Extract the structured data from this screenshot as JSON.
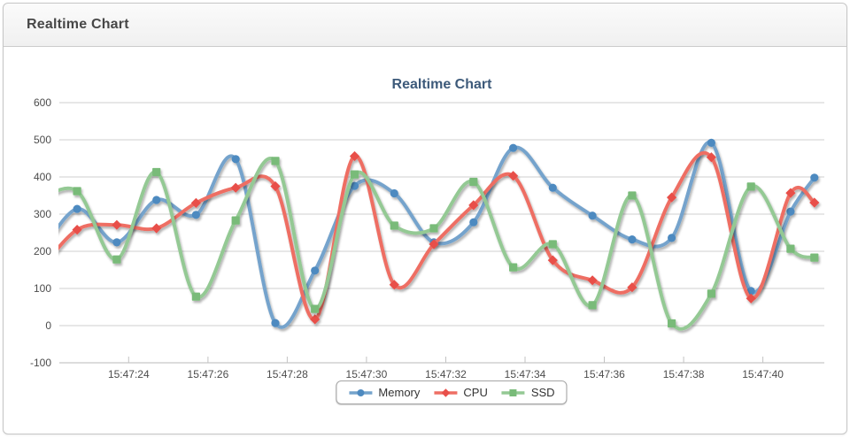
{
  "header": {
    "title": "Realtime Chart"
  },
  "chart_data": {
    "type": "line",
    "title": "Realtime Chart",
    "subtitle": "",
    "xlabel": "",
    "ylabel": "",
    "grid": "horizontal",
    "legend_position": "bottom",
    "x_axis": {
      "min": 22.25,
      "max": 41.55,
      "unit": "seconds after 15:47:00",
      "ticks": [
        {
          "t": 24,
          "label": "15:47:24"
        },
        {
          "t": 26,
          "label": "15:47:26"
        },
        {
          "t": 28,
          "label": "15:47:28"
        },
        {
          "t": 30,
          "label": "15:47:30"
        },
        {
          "t": 32,
          "label": "15:47:32"
        },
        {
          "t": 34,
          "label": "15:47:34"
        },
        {
          "t": 36,
          "label": "15:47:36"
        },
        {
          "t": 38,
          "label": "15:47:38"
        },
        {
          "t": 40,
          "label": "15:47:40"
        }
      ]
    },
    "y_axis": {
      "min": -100,
      "max": 600,
      "ticks": [
        600,
        500,
        400,
        300,
        200,
        100,
        0,
        -100
      ]
    },
    "x_seconds": [
      21.7,
      22.7,
      23.7,
      24.7,
      25.7,
      26.7,
      27.7,
      28.7,
      29.7,
      30.7,
      31.7,
      32.7,
      33.7,
      34.7,
      35.7,
      36.7,
      37.7,
      38.7,
      39.7,
      40.7,
      41.3
    ],
    "series": [
      {
        "name": "Memory",
        "marker": "circle",
        "line_color": "#74a3cc",
        "marker_color": "#4e8ac0",
        "values": [
          180,
          314,
          224,
          338,
          298,
          448,
          7,
          148,
          376,
          356,
          224,
          278,
          478,
          371,
          296,
          232,
          236,
          492,
          93,
          307,
          398
        ]
      },
      {
        "name": "CPU",
        "marker": "diamond",
        "line_color": "#ee6e64",
        "marker_color": "#e8504a",
        "values": [
          140,
          258,
          271,
          262,
          330,
          371,
          375,
          17,
          456,
          110,
          219,
          324,
          403,
          176,
          122,
          103,
          345,
          453,
          73,
          357,
          331
        ]
      },
      {
        "name": "SSD",
        "marker": "square",
        "line_color": "#94c994",
        "marker_color": "#79bb79",
        "values": [
          335,
          362,
          178,
          413,
          78,
          283,
          443,
          45,
          407,
          269,
          262,
          387,
          157,
          219,
          55,
          350,
          6,
          86,
          374,
          207,
          183
        ]
      }
    ],
    "colors": {
      "gridline": "#cfcfcf",
      "axis_line": "#b9b9b9",
      "tick_text": "#4c4c4c",
      "title_text": "#3d5a7a"
    }
  }
}
